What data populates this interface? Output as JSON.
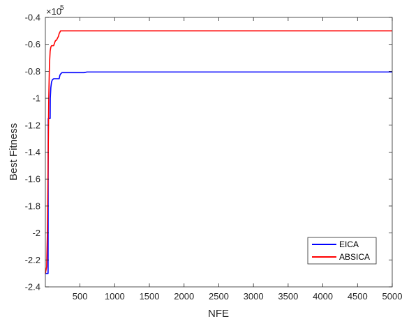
{
  "chart_data": {
    "type": "line",
    "xlabel": "NFE",
    "ylabel": "Best Fitness",
    "xlim": [
      1,
      5000
    ],
    "ylim": [
      -240000,
      -40000
    ],
    "x_ticks": [
      500,
      1000,
      1500,
      2000,
      2500,
      3000,
      3500,
      4000,
      4500,
      5000
    ],
    "x_tick_labels": [
      "500",
      "1000",
      "1500",
      "2000",
      "2500",
      "3000",
      "3500",
      "4000",
      "4500",
      "5000"
    ],
    "y_ticks": [
      -2.4,
      -2.2,
      -2,
      -1.8,
      -1.6,
      -1.4,
      -1.2,
      -1,
      -0.8,
      -0.6,
      -0.4
    ],
    "y_tick_labels": [
      "-2.4",
      "-2.2",
      "-2",
      "-1.8",
      "-1.6",
      "-1.4",
      "-1.2",
      "-1",
      "-0.8",
      "-0.6",
      "-0.4"
    ],
    "y_exponent_base": "×10",
    "y_exponent_power": "5",
    "grid": false,
    "legend_position": "bottom-right",
    "series": [
      {
        "name": "EICA",
        "color": "#0000ff",
        "x": [
          1,
          40,
          42,
          70,
          72,
          80,
          90,
          100,
          110,
          120,
          130,
          140,
          150,
          160,
          170,
          180,
          190,
          200,
          210,
          220,
          240,
          260,
          300,
          400,
          500,
          560,
          600,
          1000,
          2000,
          3000,
          4000,
          5000
        ],
        "y": [
          -230000,
          -230000,
          -115000,
          -115000,
          -100000,
          -92000,
          -88000,
          -86500,
          -86000,
          -85500,
          -85500,
          -85500,
          -85500,
          -85500,
          -85500,
          -85500,
          -85500,
          -85500,
          -83000,
          -82000,
          -81000,
          -81000,
          -81000,
          -81000,
          -81000,
          -81000,
          -80500,
          -80500,
          -80500,
          -80500,
          -80500,
          -80500
        ]
      },
      {
        "name": "ABSICA",
        "color": "#ff0000",
        "x": [
          1,
          20,
          30,
          40,
          50,
          60,
          70,
          80,
          90,
          100,
          120,
          140,
          150,
          160,
          170,
          180,
          190,
          200,
          220,
          230,
          250,
          300,
          400,
          1000,
          2000,
          3000,
          4000,
          5000
        ],
        "y": [
          -230000,
          -225000,
          -200000,
          -150000,
          -100000,
          -75000,
          -65000,
          -62000,
          -61000,
          -61000,
          -61000,
          -58000,
          -57000,
          -57000,
          -56000,
          -55000,
          -54000,
          -52000,
          -50000,
          -50000,
          -50000,
          -50000,
          -50000,
          -50000,
          -50000,
          -50000,
          -50000,
          -50000
        ]
      }
    ]
  }
}
